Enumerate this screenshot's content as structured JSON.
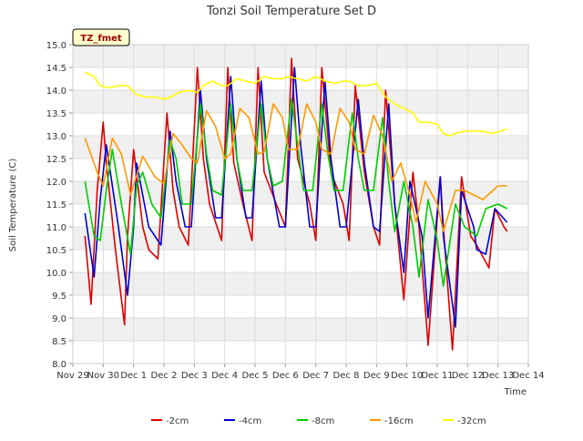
{
  "chart_data": {
    "type": "line",
    "title": "Tonzi Soil Temperature Set D",
    "xlabel": "Time",
    "ylabel": "Soil Temperature (C)",
    "badge": "TZ_fmet",
    "xlim": [
      0,
      15
    ],
    "ylim": [
      8.0,
      15.0
    ],
    "yticks": [
      8.0,
      8.5,
      9.0,
      9.5,
      10.0,
      10.5,
      11.0,
      11.5,
      12.0,
      12.5,
      13.0,
      13.5,
      14.0,
      14.5,
      15.0
    ],
    "xticks": [
      "Nov 29",
      "Nov 30",
      "Dec 1",
      "Dec 2",
      "Dec 3",
      "Dec 4",
      "Dec 5",
      "Dec 6",
      "Dec 7",
      "Dec 8",
      "Dec 9",
      "Dec 10",
      "Dec 11",
      "Dec 12",
      "Dec 13",
      "Dec 14"
    ],
    "grid": true,
    "legend_position": "bottom",
    "series": [
      {
        "name": "-2cm",
        "color": "#dd0000",
        "x": [
          0.4,
          0.6,
          0.8,
          1.0,
          1.1,
          1.4,
          1.7,
          1.8,
          2.0,
          2.3,
          2.5,
          2.8,
          3.1,
          3.3,
          3.5,
          3.8,
          4.1,
          4.3,
          4.5,
          4.9,
          5.1,
          5.3,
          5.6,
          5.9,
          6.1,
          6.3,
          6.7,
          7.0,
          7.2,
          7.4,
          7.8,
          8.0,
          8.2,
          8.5,
          8.9,
          9.1,
          9.3,
          9.6,
          9.9,
          10.1,
          10.3,
          10.6,
          10.9,
          11.2,
          11.4,
          11.7,
          12.1,
          12.2,
          12.5,
          12.8,
          13.1,
          13.3,
          13.7,
          13.9,
          14.2,
          14.3
        ],
        "y": [
          10.8,
          9.3,
          11.8,
          13.3,
          12.4,
          10.5,
          8.85,
          10.8,
          12.7,
          11.0,
          10.5,
          10.3,
          13.5,
          11.8,
          11.0,
          10.6,
          14.5,
          12.5,
          11.5,
          10.7,
          14.5,
          12.4,
          11.5,
          10.7,
          14.5,
          12.2,
          11.5,
          11.0,
          14.7,
          12.5,
          11.5,
          10.7,
          14.5,
          12.2,
          11.5,
          10.7,
          14.1,
          12.2,
          11.0,
          10.6,
          14.0,
          11.5,
          9.4,
          12.2,
          11.0,
          8.4,
          12.1,
          11.0,
          8.3,
          12.1,
          10.8,
          10.6,
          10.1,
          11.4,
          11.0,
          10.9
        ]
      },
      {
        "name": "-4cm",
        "color": "#0000cc",
        "x": [
          0.4,
          0.7,
          0.9,
          1.1,
          1.5,
          1.8,
          2.0,
          2.1,
          2.5,
          2.9,
          3.2,
          3.4,
          3.7,
          3.9,
          4.2,
          4.4,
          4.7,
          4.9,
          5.2,
          5.4,
          5.7,
          5.9,
          6.2,
          6.4,
          6.8,
          7.0,
          7.3,
          7.5,
          7.8,
          8.0,
          8.3,
          8.5,
          8.8,
          9.0,
          9.4,
          9.6,
          9.9,
          10.1,
          10.4,
          10.6,
          10.9,
          11.1,
          11.5,
          11.7,
          12.1,
          12.2,
          12.6,
          12.8,
          13.2,
          13.3,
          13.6,
          13.9,
          14.3
        ],
        "y": [
          11.3,
          9.9,
          11.6,
          12.8,
          11.0,
          9.5,
          11.0,
          12.4,
          11.0,
          10.6,
          13.1,
          12.0,
          11.0,
          11.0,
          14.0,
          12.5,
          11.2,
          11.2,
          14.3,
          12.5,
          11.2,
          11.2,
          14.2,
          12.5,
          11.0,
          11.0,
          14.5,
          12.8,
          11.0,
          11.0,
          14.2,
          12.5,
          11.0,
          11.0,
          13.8,
          12.4,
          11.0,
          10.9,
          13.7,
          11.5,
          10.0,
          12.0,
          10.8,
          9.0,
          12.1,
          10.8,
          8.8,
          11.8,
          11.0,
          10.5,
          10.4,
          11.4,
          11.1
        ]
      },
      {
        "name": "-8cm",
        "color": "#00cc00",
        "x": [
          0.4,
          0.7,
          0.9,
          1.1,
          1.3,
          1.6,
          1.9,
          2.1,
          2.3,
          2.6,
          2.9,
          3.2,
          3.4,
          3.6,
          3.9,
          4.2,
          4.4,
          4.6,
          4.9,
          5.2,
          5.4,
          5.6,
          5.9,
          6.2,
          6.4,
          6.6,
          6.9,
          7.2,
          7.4,
          7.6,
          7.9,
          8.2,
          8.4,
          8.6,
          8.9,
          9.2,
          9.4,
          9.6,
          9.9,
          10.2,
          10.4,
          10.6,
          10.9,
          11.2,
          11.4,
          11.7,
          12.0,
          12.2,
          12.6,
          12.9,
          13.1,
          13.3,
          13.6,
          14.0,
          14.3
        ],
        "y": [
          12.0,
          10.8,
          10.7,
          11.8,
          12.7,
          11.5,
          10.4,
          11.9,
          12.2,
          11.5,
          11.2,
          12.9,
          12.5,
          11.5,
          11.5,
          13.7,
          12.6,
          11.8,
          11.7,
          13.7,
          12.5,
          11.8,
          11.8,
          13.7,
          12.5,
          11.9,
          12.0,
          13.8,
          12.8,
          11.8,
          11.8,
          13.7,
          12.6,
          11.8,
          11.8,
          13.5,
          12.5,
          11.8,
          11.8,
          13.4,
          12.0,
          10.9,
          12.0,
          11.0,
          9.9,
          11.6,
          10.7,
          9.7,
          11.5,
          11.0,
          10.9,
          10.8,
          11.4,
          11.5,
          11.4
        ]
      },
      {
        "name": "-16cm",
        "color": "#ff9900",
        "x": [
          0.4,
          0.8,
          1.0,
          1.3,
          1.6,
          1.9,
          2.3,
          2.7,
          3.0,
          3.3,
          3.6,
          3.9,
          4.1,
          4.4,
          4.7,
          5.0,
          5.2,
          5.5,
          5.8,
          6.1,
          6.3,
          6.6,
          6.9,
          7.1,
          7.4,
          7.7,
          8.0,
          8.2,
          8.5,
          8.8,
          9.1,
          9.3,
          9.6,
          9.9,
          10.2,
          10.5,
          10.8,
          11.1,
          11.3,
          11.6,
          12.0,
          12.2,
          12.6,
          12.9,
          13.2,
          13.5,
          14.0,
          14.3
        ],
        "y": [
          12.95,
          12.2,
          11.9,
          12.95,
          12.6,
          11.7,
          12.55,
          12.1,
          11.95,
          13.05,
          12.8,
          12.5,
          12.4,
          13.55,
          13.2,
          12.5,
          12.6,
          13.6,
          13.4,
          12.6,
          12.65,
          13.7,
          13.4,
          12.7,
          12.7,
          13.7,
          13.3,
          12.7,
          12.6,
          13.6,
          13.3,
          12.7,
          12.6,
          13.45,
          13.0,
          12.0,
          12.4,
          11.7,
          11.1,
          12.0,
          11.5,
          10.9,
          11.8,
          11.8,
          11.7,
          11.6,
          11.9,
          11.9
        ]
      },
      {
        "name": "-32cm",
        "color": "#ffff00",
        "x": [
          0.4,
          0.7,
          0.9,
          1.2,
          1.5,
          1.8,
          2.1,
          2.4,
          2.7,
          3.0,
          3.2,
          3.5,
          3.8,
          4.1,
          4.3,
          4.6,
          4.9,
          5.1,
          5.4,
          5.7,
          6.0,
          6.3,
          6.6,
          6.9,
          7.1,
          7.4,
          7.7,
          8.0,
          8.3,
          8.6,
          8.9,
          9.1,
          9.4,
          9.7,
          10.0,
          10.3,
          10.6,
          10.9,
          11.2,
          11.4,
          11.7,
          12.0,
          12.2,
          12.4,
          12.6,
          12.9,
          13.2,
          13.5,
          13.8,
          14.1,
          14.3
        ],
        "y": [
          14.4,
          14.3,
          14.1,
          14.05,
          14.1,
          14.1,
          13.9,
          13.85,
          13.85,
          13.8,
          13.85,
          13.95,
          14.0,
          13.95,
          14.1,
          14.2,
          14.1,
          14.1,
          14.25,
          14.2,
          14.15,
          14.3,
          14.25,
          14.25,
          14.3,
          14.25,
          14.2,
          14.3,
          14.2,
          14.15,
          14.2,
          14.2,
          14.1,
          14.1,
          14.15,
          13.85,
          13.7,
          13.6,
          13.5,
          13.3,
          13.3,
          13.25,
          13.05,
          13.0,
          13.05,
          13.1,
          13.1,
          13.1,
          13.05,
          13.1,
          13.15
        ]
      }
    ]
  }
}
